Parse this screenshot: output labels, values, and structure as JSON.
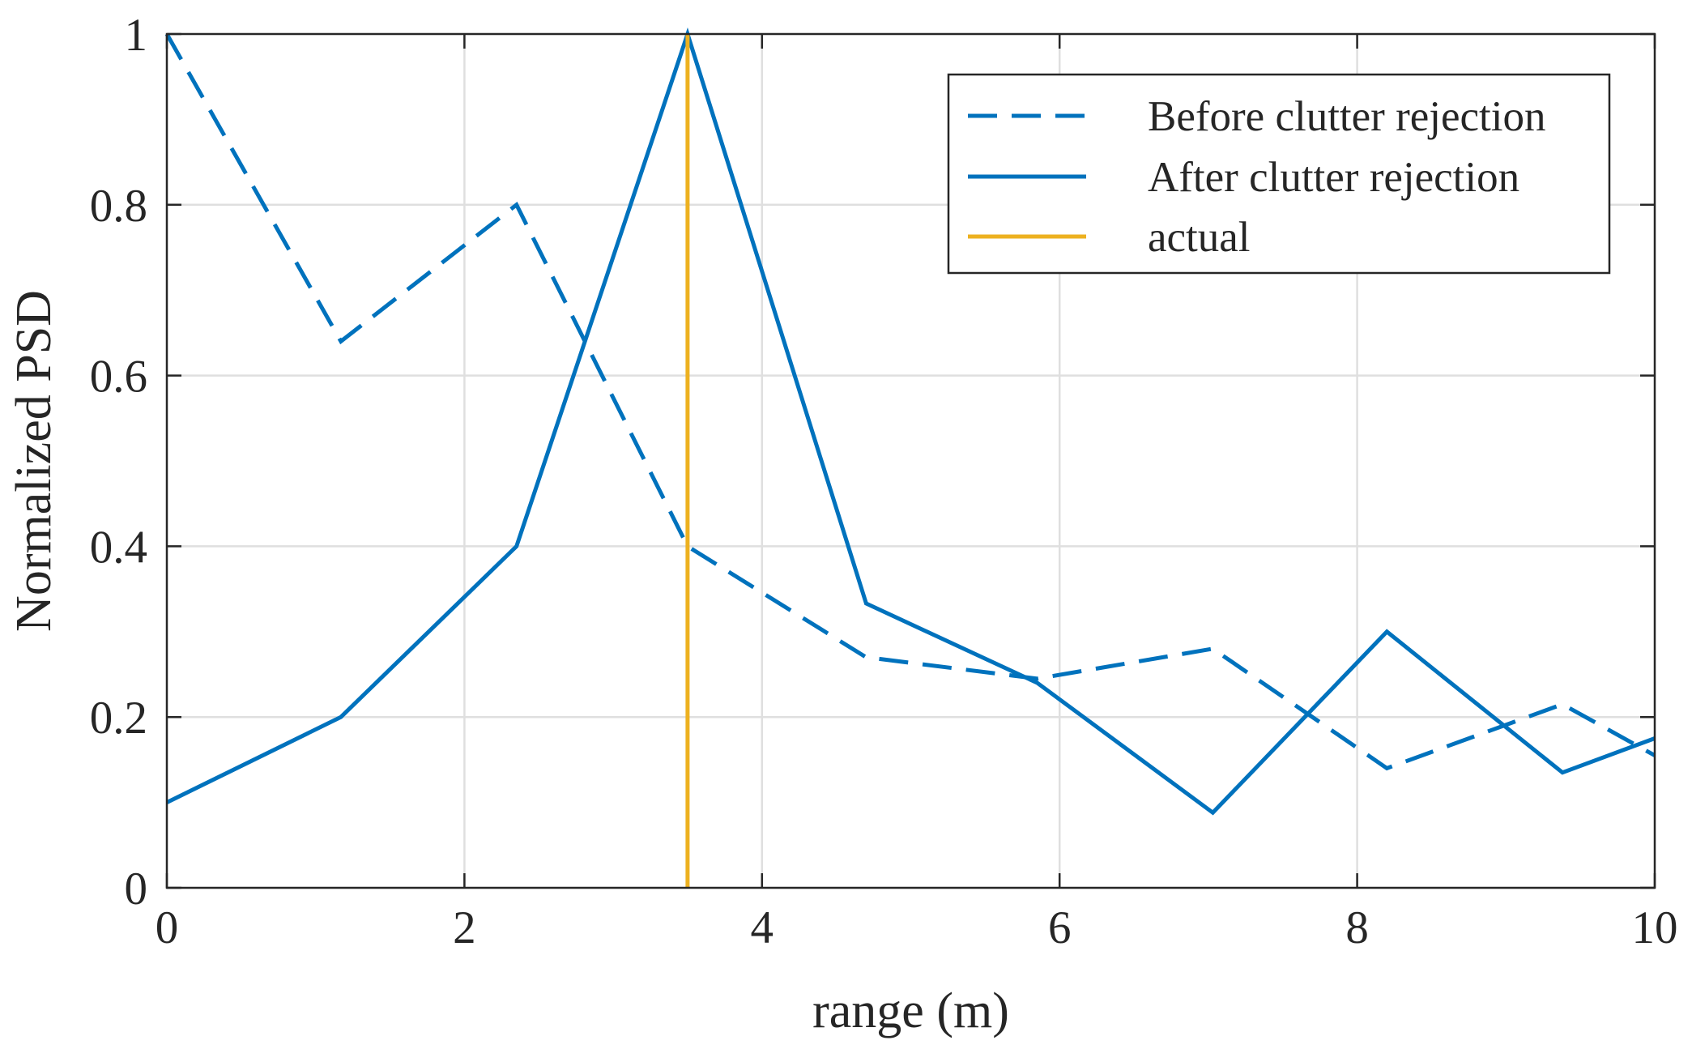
{
  "chart_data": {
    "type": "line",
    "title": "",
    "xlabel": "range (m)",
    "ylabel": "Normalized PSD",
    "xlim": [
      0,
      10
    ],
    "ylim": [
      0,
      1
    ],
    "xticks": [
      0,
      2,
      4,
      6,
      8,
      10
    ],
    "yticks": [
      0,
      0.2,
      0.4,
      0.6,
      0.8,
      1
    ],
    "xtick_labels": [
      "0",
      "2",
      "4",
      "6",
      "8",
      "10"
    ],
    "ytick_labels": [
      "0",
      "0.2",
      "0.4",
      "0.6",
      "0.8",
      "1"
    ],
    "grid": true,
    "legend_position": "top-right",
    "series": [
      {
        "name": "Before clutter rejection",
        "style": "dashed",
        "color": "#0072BD",
        "x": [
          0,
          1.17,
          2.35,
          3.5,
          4.7,
          5.85,
          7.03,
          8.2,
          9.38,
          10
        ],
        "y": [
          1.0,
          0.64,
          0.8,
          0.4,
          0.27,
          0.245,
          0.28,
          0.14,
          0.215,
          0.155
        ]
      },
      {
        "name": "After clutter rejection",
        "style": "solid",
        "color": "#0072BD",
        "x": [
          0,
          1.17,
          2.35,
          3.5,
          4.7,
          5.85,
          7.03,
          8.2,
          9.38,
          10
        ],
        "y": [
          0.1,
          0.2,
          0.4,
          1.0,
          0.333,
          0.24,
          0.088,
          0.3,
          0.135,
          0.175
        ]
      },
      {
        "name": "actual",
        "style": "vertical",
        "color": "#EDB120",
        "x": [
          3.5,
          3.5
        ],
        "y": [
          0,
          1
        ]
      }
    ]
  }
}
